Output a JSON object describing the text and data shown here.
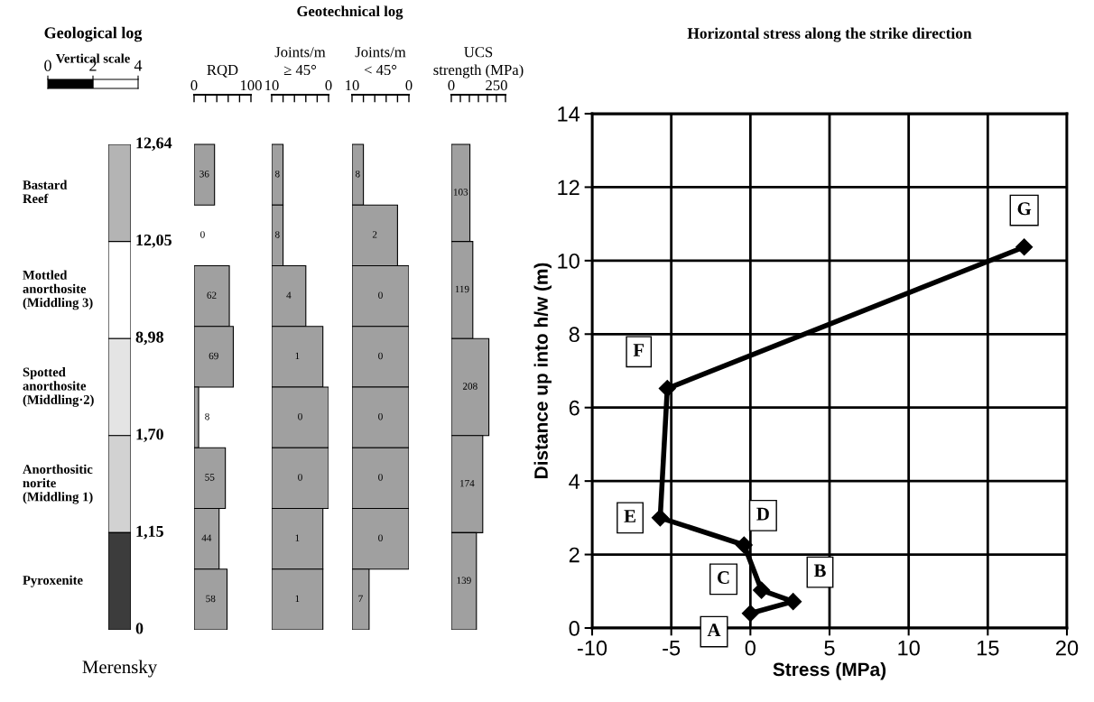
{
  "chart_data": [
    {
      "type": "other",
      "title": "Geological log",
      "categories": [
        "Bastard\nReef",
        "Mottled\nanorthosite\n(Middling 3)",
        "Spotted\nanorthosite\n(Middling·2)",
        "Anorthositic\nnorite\n(Middling 1)",
        "Pyroxenite"
      ],
      "colors": [
        "#b4b4b4",
        "#ffffff",
        "#e4e4e4",
        "#d2d2d2",
        "#3c3c3c"
      ],
      "annotations": [
        "12,64",
        "12,05",
        "8,98",
        "1,70",
        "1,15",
        "0",
        "Merensky"
      ]
    },
    {
      "type": "bar",
      "orientation": "horizontal",
      "xlabel": "Vertical scale",
      "categories": [
        null
      ],
      "values": [
        2
      ],
      "color": "#000000",
      "xlim": [
        0,
        4
      ],
      "xticks": [
        0,
        2,
        4
      ],
      "tick_labels": "x"
    },
    {
      "type": "other",
      "title": "Geotechnical log"
    },
    {
      "type": "bar",
      "orientation": "horizontal",
      "xlabel": "RQD",
      "categories": [
        null,
        null,
        null,
        null,
        null,
        null,
        null,
        null
      ],
      "values": [
        36,
        0,
        62,
        69,
        8,
        55,
        44,
        58
      ],
      "color": "#a0a0a0",
      "xlim": [
        0,
        100
      ],
      "xticks": [
        0,
        100
      ],
      "data_labels": true,
      "tick_labels": "x"
    },
    {
      "type": "bar",
      "orientation": "horizontal",
      "xlabel": "Joints/m\n≥ 45°",
      "categories": [
        null,
        null,
        null,
        null,
        null,
        null,
        null,
        null
      ],
      "base": [
        10,
        10,
        10,
        10,
        10,
        10,
        10,
        10
      ],
      "values": [
        -2,
        -2,
        -6,
        -9,
        -10,
        -10,
        -9,
        -9
      ],
      "value_labels": [
        "8",
        "8",
        "4",
        "1",
        "0",
        "0",
        "1",
        "1"
      ],
      "color": "#a0a0a0",
      "xlim": [
        10,
        0
      ],
      "xticks": [
        10,
        0
      ],
      "tick_labels": "x"
    },
    {
      "type": "bar",
      "orientation": "horizontal",
      "xlabel": "Joints/m\n< 45°",
      "categories": [
        null,
        null,
        null,
        null,
        null,
        null,
        null,
        null
      ],
      "base": [
        10,
        10,
        10,
        10,
        10,
        10,
        10,
        10
      ],
      "values": [
        -2,
        -8,
        -10,
        -10,
        -10,
        -10,
        -10,
        -3
      ],
      "value_labels": [
        "8",
        "2",
        "0",
        "0",
        "0",
        "0",
        "0",
        "7"
      ],
      "color": "#a0a0a0",
      "xlim": [
        10,
        0
      ],
      "xticks": [
        10,
        0
      ],
      "tick_labels": "x"
    },
    {
      "type": "bar",
      "orientation": "horizontal",
      "xlabel": "UCS\nstrength (MPa)",
      "categories": [
        null,
        null,
        null,
        null,
        null
      ],
      "values": [
        103,
        119,
        208,
        174,
        139
      ],
      "color": "#a0a0a0",
      "xlim": [
        0,
        300
      ],
      "xticks": [
        0,
        250
      ],
      "data_labels": true,
      "tick_labels": "x"
    },
    {
      "type": "line",
      "title": "Horizontal stress along the strike direction",
      "xlabel": "Stress (MPa)",
      "ylabel": "Distance up into h/w (m)",
      "x": [
        0,
        2.7,
        0.7,
        -0.4,
        -5.7,
        -5.25,
        17.3
      ],
      "series": [
        {
          "color": "#000000",
          "values": [
            0.4,
            0.72,
            1.03,
            2.26,
            3.0,
            6.52,
            10.37
          ]
        }
      ],
      "marker": "diamond",
      "line_style": "solid",
      "xlim": [
        -10,
        20
      ],
      "xticks": [
        -10,
        -5,
        0,
        5,
        10,
        15,
        20
      ],
      "ylim": [
        0,
        14
      ],
      "yticks": [
        0,
        2,
        4,
        6,
        8,
        10,
        12,
        14
      ],
      "grid": true,
      "annotations": [
        {
          "text": "A",
          "x": 0,
          "y": 0.4
        },
        {
          "text": "B",
          "x": 2.7,
          "y": 0.72
        },
        {
          "text": "C",
          "x": 0.7,
          "y": 1.03
        },
        {
          "text": "D",
          "x": -0.4,
          "y": 2.26
        },
        {
          "text": "E",
          "x": -5.7,
          "y": 3.0
        },
        {
          "text": "F",
          "x": -5.25,
          "y": 6.52
        },
        {
          "text": "G",
          "x": 17.3,
          "y": 10.37
        }
      ]
    }
  ]
}
